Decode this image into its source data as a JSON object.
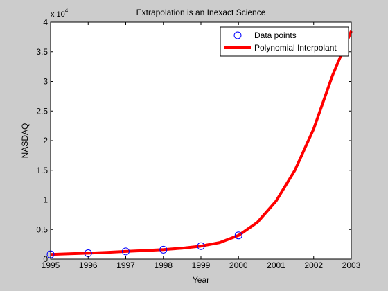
{
  "chart_data": {
    "type": "line",
    "title": "Extrapolation is an Inexact Science",
    "xlabel": "Year",
    "ylabel": "NASDAQ",
    "xlim": [
      1995,
      2003
    ],
    "ylim": [
      0,
      40000
    ],
    "y_exponent_label": "x 10",
    "y_exponent_power": "4",
    "xticks": [
      1995,
      1996,
      1997,
      1998,
      1999,
      2000,
      2001,
      2002,
      2003
    ],
    "xtick_labels": [
      "1995",
      "1996",
      "1997",
      "1998",
      "1999",
      "2000",
      "2001",
      "2002",
      "2003"
    ],
    "yticks": [
      0,
      5000,
      10000,
      15000,
      20000,
      25000,
      30000,
      35000,
      40000
    ],
    "ytick_labels": [
      "0",
      "0.5",
      "1",
      "1.5",
      "2",
      "2.5",
      "3",
      "3.5",
      "4"
    ],
    "grid": false,
    "legend_position": "top-right",
    "series": [
      {
        "name": "Data points",
        "style": "markers",
        "color": "#0000ff",
        "marker": "circle",
        "x": [
          1995,
          1996,
          1997,
          1998,
          1999,
          2000
        ],
        "y": [
          800,
          1000,
          1300,
          1600,
          2200,
          4000
        ]
      },
      {
        "name": "Polynomial Interpolant",
        "style": "line",
        "color": "#ff0000",
        "x": [
          1995,
          1995.5,
          1996,
          1996.5,
          1997,
          1997.5,
          1998,
          1998.5,
          1999,
          1999.5,
          2000,
          2000.5,
          2001,
          2001.5,
          2002,
          2002.5,
          2003
        ],
        "y": [
          800,
          900,
          1000,
          1150,
          1300,
          1450,
          1600,
          1850,
          2200,
          2800,
          4000,
          6200,
          9800,
          15000,
          22000,
          31000,
          38500
        ]
      }
    ]
  }
}
